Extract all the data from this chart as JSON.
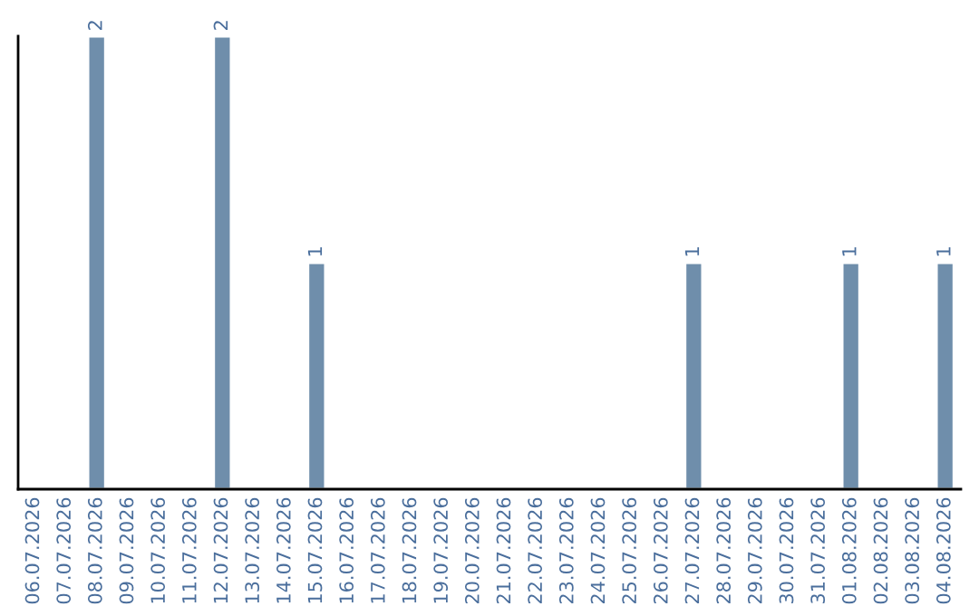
{
  "chart_data": {
    "type": "bar",
    "categories": [
      "06.07.2026",
      "07.07.2026",
      "08.07.2026",
      "09.07.2026",
      "10.07.2026",
      "11.07.2026",
      "12.07.2026",
      "13.07.2026",
      "14.07.2026",
      "15.07.2026",
      "16.07.2026",
      "17.07.2026",
      "18.07.2026",
      "19.07.2026",
      "20.07.2026",
      "21.07.2026",
      "22.07.2026",
      "23.07.2026",
      "24.07.2026",
      "25.07.2026",
      "26.07.2026",
      "27.07.2026",
      "28.07.2026",
      "29.07.2026",
      "30.07.2026",
      "31.07.2026",
      "01.08.2026",
      "02.08.2026",
      "03.08.2026",
      "04.08.2026"
    ],
    "values": [
      null,
      null,
      2,
      null,
      null,
      null,
      2,
      null,
      null,
      1,
      null,
      null,
      null,
      null,
      null,
      null,
      null,
      null,
      null,
      null,
      null,
      1,
      null,
      null,
      null,
      null,
      1,
      null,
      null,
      1
    ],
    "value_labels": [
      null,
      null,
      "2",
      null,
      null,
      null,
      "2",
      null,
      null,
      "1",
      null,
      null,
      null,
      null,
      null,
      null,
      null,
      null,
      null,
      null,
      null,
      "1",
      null,
      null,
      null,
      null,
      "1",
      null,
      null,
      "1"
    ],
    "color": "#6f8eab",
    "ylim": [
      0,
      2
    ],
    "tick_labels": "x",
    "grid": false,
    "legend": false
  }
}
